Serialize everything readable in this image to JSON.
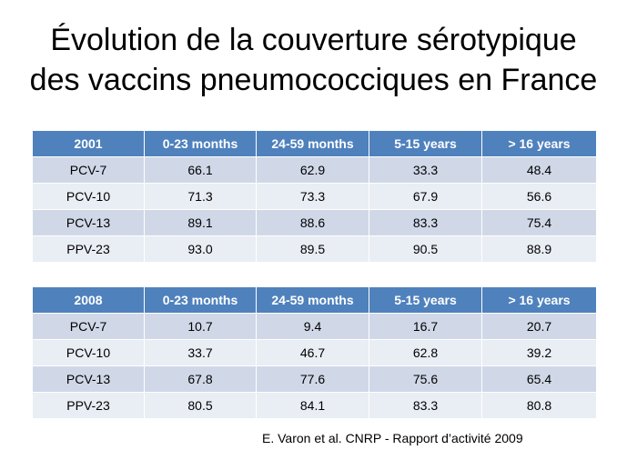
{
  "title": {
    "line1": "Évolution de la couverture sérotypique",
    "line2": "des vaccins pneumococciques en France"
  },
  "tables": [
    {
      "headers": [
        "2001",
        "0-23 months",
        "24-59 months",
        "5-15 years",
        "> 16 years"
      ],
      "rows": [
        [
          "PCV-7",
          "66.1",
          "62.9",
          "33.3",
          "48.4"
        ],
        [
          "PCV-10",
          "71.3",
          "73.3",
          "67.9",
          "56.6"
        ],
        [
          "PCV-13",
          "89.1",
          "88.6",
          "83.3",
          "75.4"
        ],
        [
          "PPV-23",
          "93.0",
          "89.5",
          "90.5",
          "88.9"
        ]
      ]
    },
    {
      "headers": [
        "2008",
        "0-23 months",
        "24-59 months",
        "5-15 years",
        "> 16 years"
      ],
      "rows": [
        [
          "PCV-7",
          "10.7",
          "9.4",
          "16.7",
          "20.7"
        ],
        [
          "PCV-10",
          "33.7",
          "46.7",
          "62.8",
          "39.2"
        ],
        [
          "PCV-13",
          "67.8",
          "77.6",
          "75.6",
          "65.4"
        ],
        [
          "PPV-23",
          "80.5",
          "84.1",
          "83.3",
          "80.8"
        ]
      ]
    }
  ],
  "source": "E. Varon et al. CNRP - Rapport d’activité 2009",
  "colors": {
    "header_bg": "#4f81bd",
    "row_odd": "#d0d8e8",
    "row_even": "#e9edf4"
  }
}
